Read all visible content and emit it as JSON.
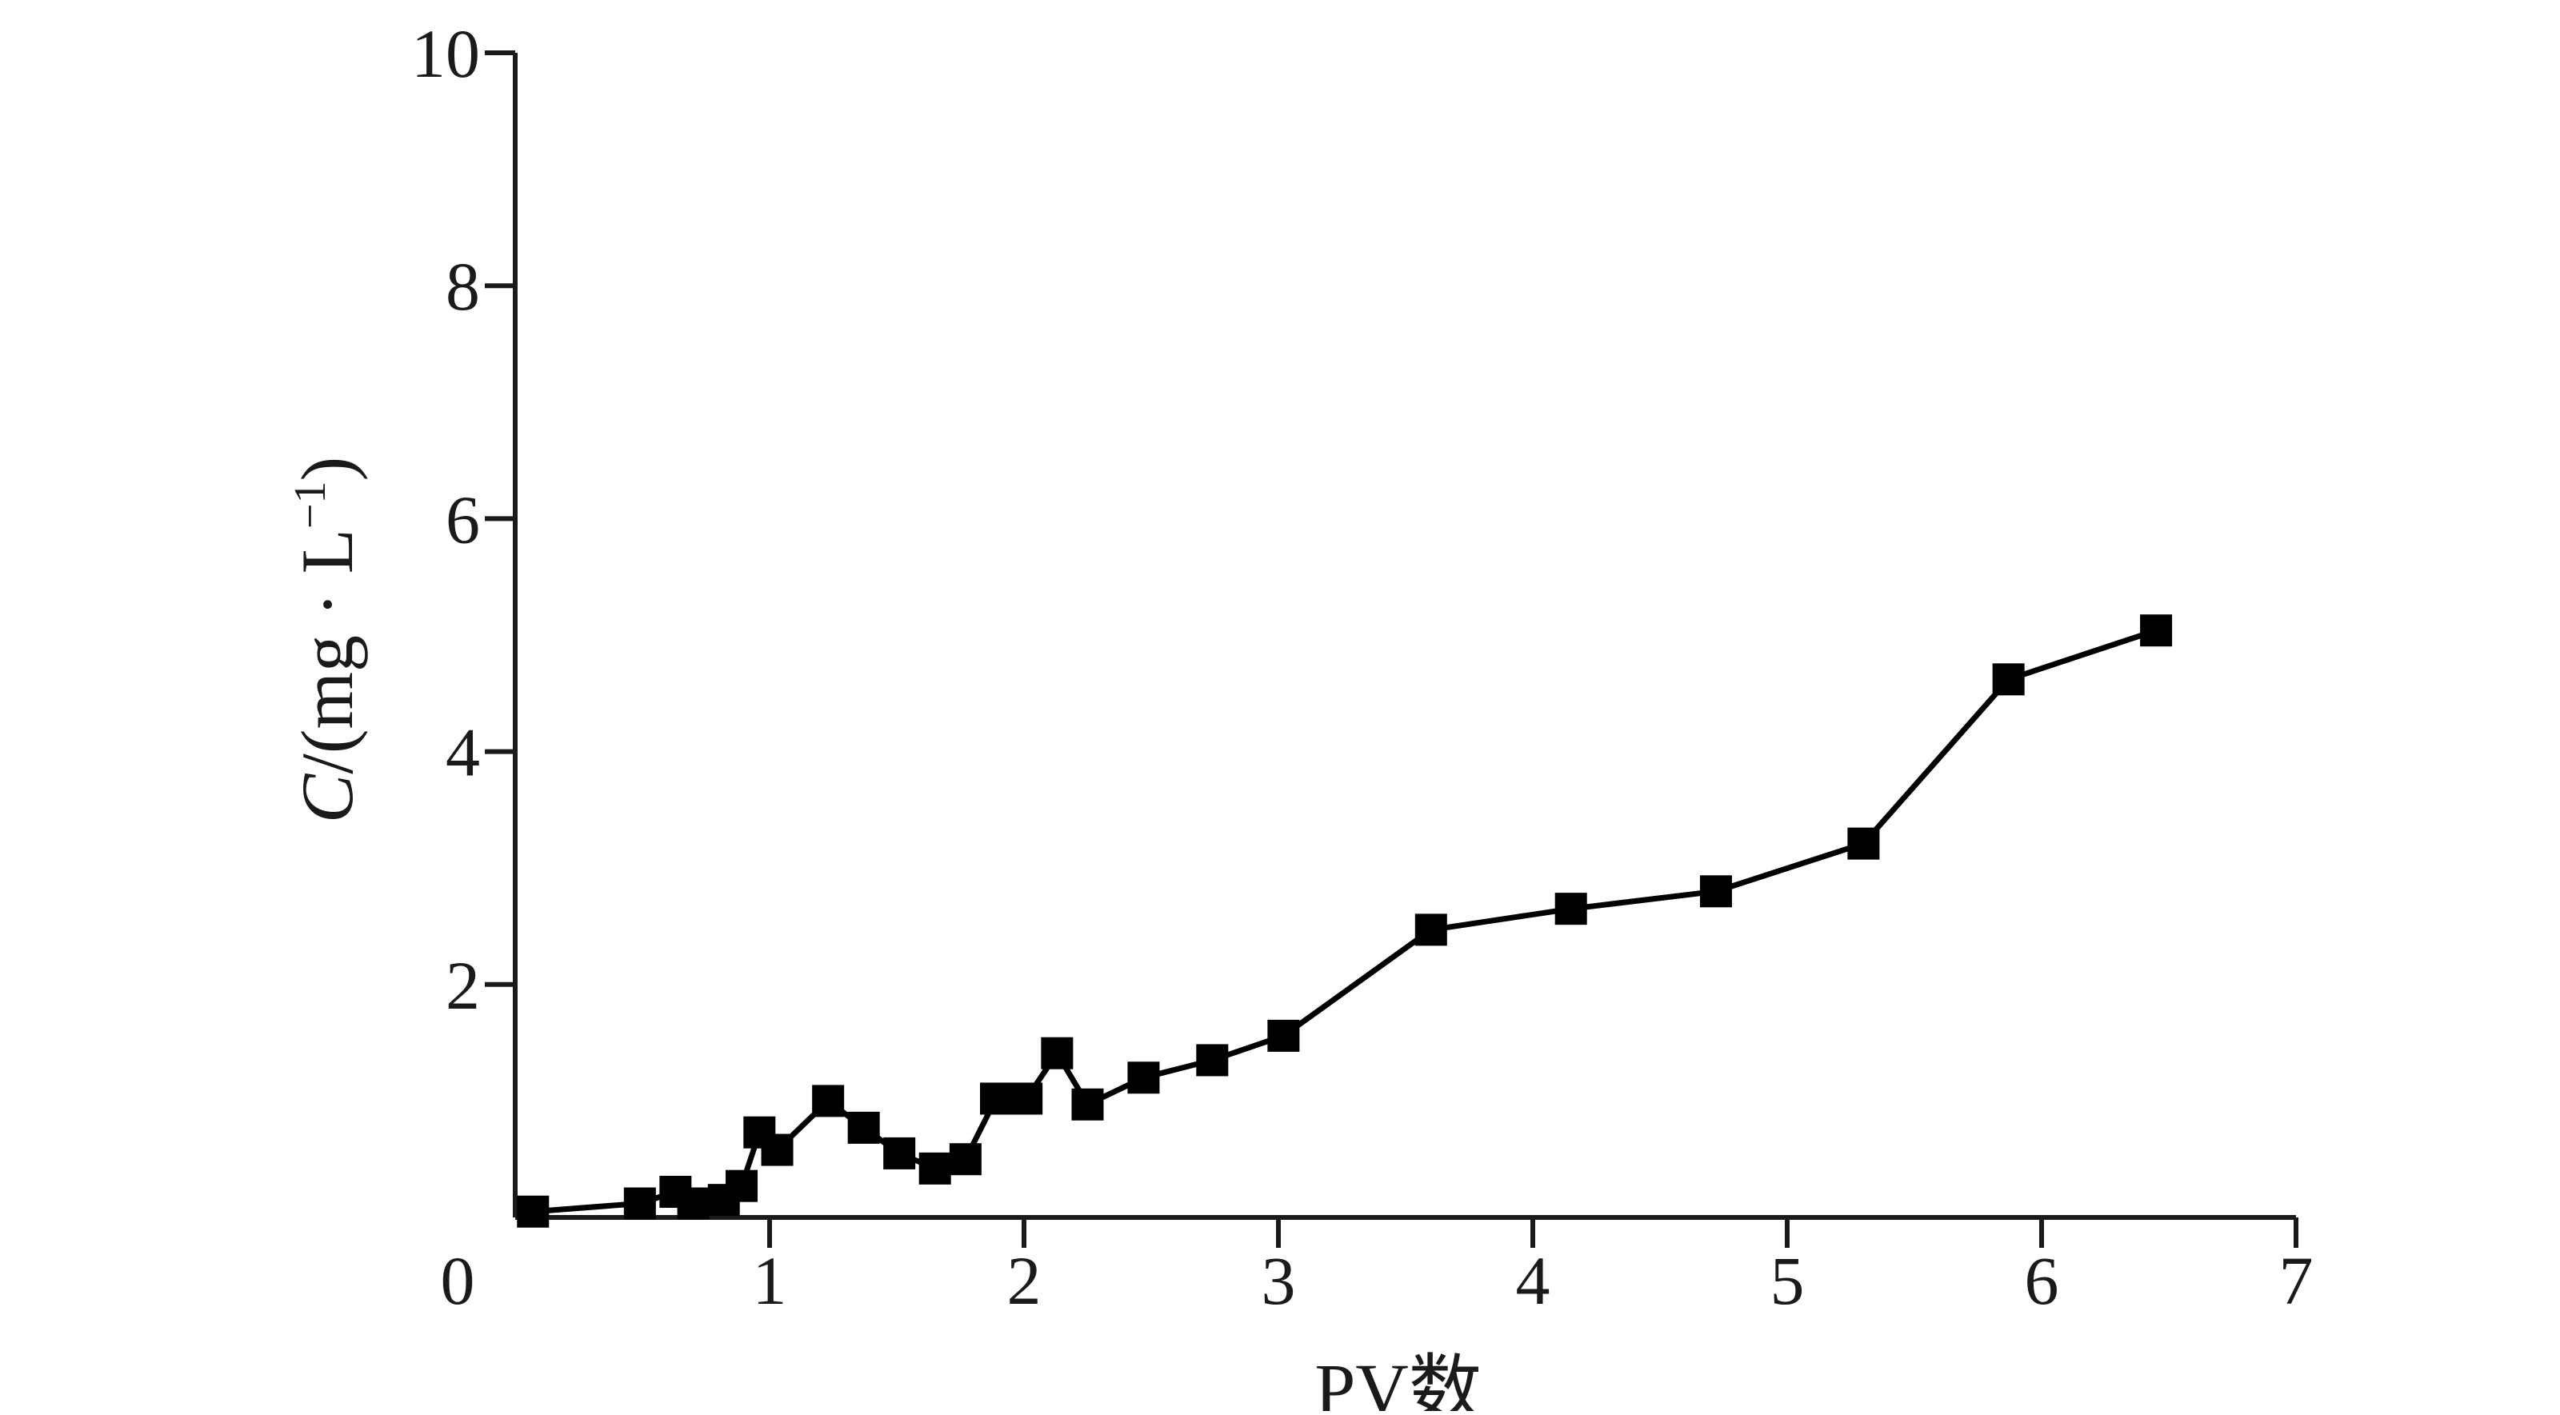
{
  "chart_data": {
    "type": "line",
    "title": "",
    "xlabel": "PV数",
    "ylabel": {
      "var": "C",
      "rest": "/(mg · L",
      "sup": "−1",
      "close": ")"
    },
    "xlim": [
      0,
      7
    ],
    "ylim": [
      0,
      10
    ],
    "origin_label": "0",
    "x_ticks": [
      1,
      2,
      3,
      4,
      5,
      6,
      7
    ],
    "y_ticks": [
      2,
      4,
      6,
      8,
      10
    ],
    "grid": false,
    "legend": "none",
    "colors": {
      "series": "#000000",
      "axis": "#1a1a1a"
    },
    "series": [
      {
        "marker": "square",
        "x": [
          0.07,
          0.49,
          0.63,
          0.7,
          0.82,
          0.89,
          0.96,
          1.03,
          1.23,
          1.37,
          1.51,
          1.65,
          1.77,
          1.89,
          2.01,
          2.13,
          2.25,
          2.47,
          2.74,
          3.02,
          3.6,
          4.15,
          4.72,
          5.3,
          5.87,
          6.45
        ],
        "y": [
          0.05,
          0.12,
          0.22,
          0.12,
          0.15,
          0.27,
          0.73,
          0.58,
          1.0,
          0.77,
          0.55,
          0.42,
          0.5,
          1.02,
          1.02,
          1.41,
          0.97,
          1.2,
          1.35,
          1.56,
          2.47,
          2.65,
          2.8,
          3.21,
          4.62,
          5.04
        ]
      }
    ]
  }
}
